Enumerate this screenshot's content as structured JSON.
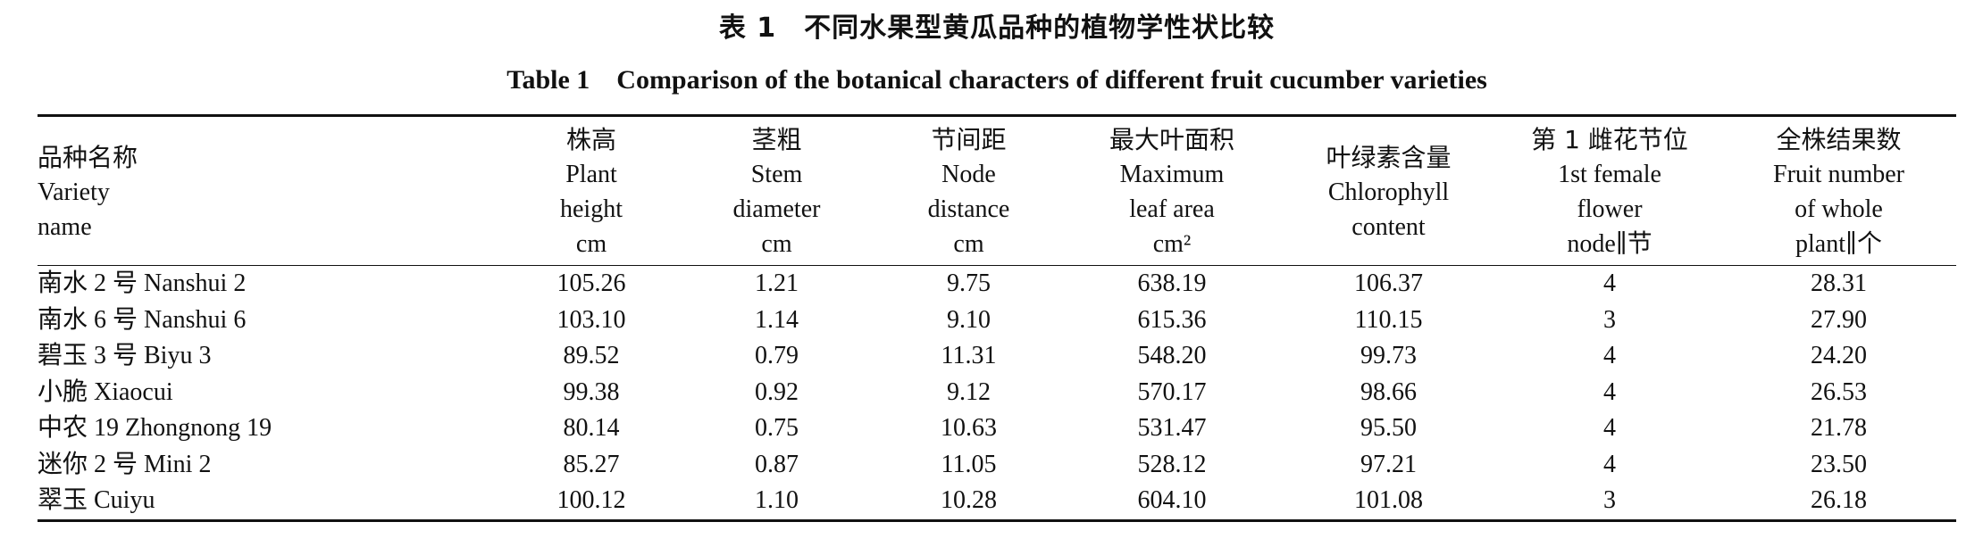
{
  "caption": {
    "cn": "表 1　不同水果型黄瓜品种的植物学性状比较",
    "en": "Table 1　Comparison of the botanical characters of different fruit cucumber varieties"
  },
  "table": {
    "headers": [
      [
        "品种名称",
        "Variety",
        "name"
      ],
      [
        "株高",
        "Plant",
        "height",
        "cm"
      ],
      [
        "茎粗",
        "Stem",
        "diameter",
        "cm"
      ],
      [
        "节间距",
        "Node",
        "distance",
        "cm"
      ],
      [
        "最大叶面积",
        "Maximum",
        "leaf area",
        "cm²"
      ],
      [
        "叶绿素含量",
        "Chlorophyll",
        "content"
      ],
      [
        "第 1 雌花节位",
        "1st female",
        "flower",
        "node∥节"
      ],
      [
        "全株结果数",
        "Fruit number",
        "of whole",
        "plant∥个"
      ]
    ],
    "rows": [
      [
        "南水 2 号 Nanshui 2",
        "105.26",
        "1.21",
        "9.75",
        "638.19",
        "106.37",
        "4",
        "28.31"
      ],
      [
        "南水 6 号 Nanshui 6",
        "103.10",
        "1.14",
        "9.10",
        "615.36",
        "110.15",
        "3",
        "27.90"
      ],
      [
        "碧玉 3 号 Biyu 3",
        "89.52",
        "0.79",
        "11.31",
        "548.20",
        "99.73",
        "4",
        "24.20"
      ],
      [
        "小脆 Xiaocui",
        "99.38",
        "0.92",
        "9.12",
        "570.17",
        "98.66",
        "4",
        "26.53"
      ],
      [
        "中农 19 Zhongnong 19",
        "80.14",
        "0.75",
        "10.63",
        "531.47",
        "95.50",
        "4",
        "21.78"
      ],
      [
        "迷你 2 号 Mini 2",
        "85.27",
        "0.87",
        "11.05",
        "528.12",
        "97.21",
        "4",
        "23.50"
      ],
      [
        "翠玉 Cuiyu",
        "100.12",
        "1.10",
        "10.28",
        "604.10",
        "101.08",
        "3",
        "26.18"
      ]
    ]
  }
}
